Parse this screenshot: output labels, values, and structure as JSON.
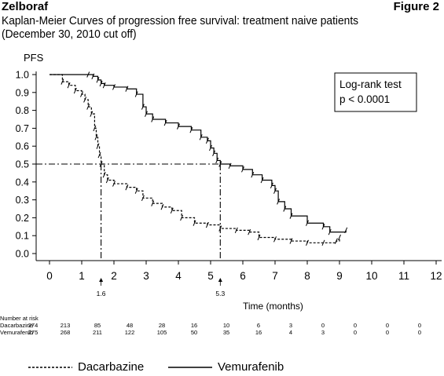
{
  "header": {
    "brand": "Zelboraf",
    "figure": "Figure 2",
    "title": "Kaplan-Meier Curves of progression free survival: treatment naive patients",
    "subtitle": "(December 30, 2010 cut off)"
  },
  "legend_items": [
    {
      "label": "Dacarbazine",
      "style": "dashed"
    },
    {
      "label": "Vemurafenib",
      "style": "solid"
    }
  ],
  "chart_data": {
    "type": "line",
    "title": "Kaplan-Meier Curves of progression free survival: treatment naive patients",
    "xlabel": "Time (months)",
    "ylabel": "PFS",
    "xlim": [
      0,
      12
    ],
    "ylim": [
      0,
      1
    ],
    "xticks": [
      "0",
      "1",
      "2",
      "3",
      "4",
      "5",
      "6",
      "7",
      "8",
      "9",
      "10",
      "11",
      "12"
    ],
    "yticks": [
      "0.0",
      "0.1",
      "0.2",
      "0.3",
      "0.4",
      "0.5",
      "0.6",
      "0.7",
      "0.8",
      "0.9",
      "1.0"
    ],
    "annotation_box": [
      "Log-rank test",
      "p < 0.0001"
    ],
    "median_markers": [
      {
        "label": "1.6",
        "x": 1.6
      },
      {
        "label": "5.3",
        "x": 5.3
      }
    ],
    "series": [
      {
        "name": "Dacarbazine",
        "style": "dashed",
        "points": [
          [
            0,
            1.0
          ],
          [
            0.4,
            0.96
          ],
          [
            0.6,
            0.94
          ],
          [
            0.8,
            0.91
          ],
          [
            1.0,
            0.89
          ],
          [
            1.1,
            0.86
          ],
          [
            1.2,
            0.82
          ],
          [
            1.3,
            0.78
          ],
          [
            1.4,
            0.7
          ],
          [
            1.45,
            0.65
          ],
          [
            1.5,
            0.6
          ],
          [
            1.55,
            0.55
          ],
          [
            1.6,
            0.5
          ],
          [
            1.7,
            0.44
          ],
          [
            1.8,
            0.41
          ],
          [
            2.0,
            0.39
          ],
          [
            2.4,
            0.37
          ],
          [
            2.7,
            0.35
          ],
          [
            2.9,
            0.31
          ],
          [
            3.2,
            0.28
          ],
          [
            3.5,
            0.26
          ],
          [
            3.8,
            0.24
          ],
          [
            4.1,
            0.2
          ],
          [
            4.5,
            0.17
          ],
          [
            4.9,
            0.16
          ],
          [
            5.3,
            0.14
          ],
          [
            5.8,
            0.13
          ],
          [
            6.2,
            0.12
          ],
          [
            6.5,
            0.09
          ],
          [
            7.0,
            0.08
          ],
          [
            7.5,
            0.07
          ],
          [
            8.0,
            0.06
          ],
          [
            8.5,
            0.06
          ],
          [
            8.9,
            0.07
          ],
          [
            9.0,
            0.09
          ]
        ]
      },
      {
        "name": "Vemurafenib",
        "style": "solid",
        "points": [
          [
            0,
            1.0
          ],
          [
            1.2,
            1.0
          ],
          [
            1.35,
            0.99
          ],
          [
            1.5,
            0.97
          ],
          [
            1.6,
            0.95
          ],
          [
            1.7,
            0.94
          ],
          [
            2.0,
            0.93
          ],
          [
            2.4,
            0.92
          ],
          [
            2.7,
            0.89
          ],
          [
            2.9,
            0.82
          ],
          [
            3.0,
            0.78
          ],
          [
            3.2,
            0.75
          ],
          [
            3.6,
            0.73
          ],
          [
            4.0,
            0.71
          ],
          [
            4.4,
            0.69
          ],
          [
            4.7,
            0.65
          ],
          [
            4.9,
            0.63
          ],
          [
            5.0,
            0.59
          ],
          [
            5.1,
            0.56
          ],
          [
            5.2,
            0.52
          ],
          [
            5.3,
            0.5
          ],
          [
            5.6,
            0.49
          ],
          [
            6.0,
            0.47
          ],
          [
            6.3,
            0.44
          ],
          [
            6.6,
            0.41
          ],
          [
            6.9,
            0.38
          ],
          [
            7.0,
            0.35
          ],
          [
            7.1,
            0.29
          ],
          [
            7.3,
            0.25
          ],
          [
            7.5,
            0.21
          ],
          [
            8.0,
            0.17
          ],
          [
            8.5,
            0.15
          ],
          [
            8.7,
            0.12
          ],
          [
            9.2,
            0.13
          ]
        ]
      }
    ],
    "number_at_risk": {
      "header": "Number at risk",
      "rows": [
        {
          "label": "Dacarbazine",
          "values": [
            "274",
            "213",
            "85",
            "48",
            "28",
            "16",
            "10",
            "6",
            "3",
            "0",
            "0",
            "0",
            "0"
          ]
        },
        {
          "label": "Vemurafenib",
          "values": [
            "275",
            "268",
            "211",
            "122",
            "105",
            "50",
            "35",
            "16",
            "4",
            "3",
            "0",
            "0",
            "0"
          ]
        }
      ]
    }
  }
}
